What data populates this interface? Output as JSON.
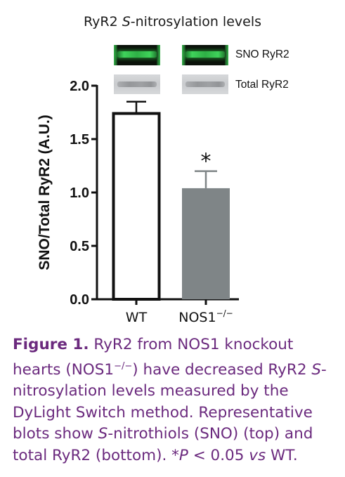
{
  "title": {
    "prefix": "RyR2 ",
    "italic": "S",
    "suffix": "-nitrosylation levels"
  },
  "blots": {
    "sno_label": "SNO RyR2",
    "total_label": "Total  RyR2"
  },
  "chart_data": {
    "type": "bar",
    "categories": [
      "WT",
      "NOS1"
    ],
    "category_superscripts": [
      "",
      "−/−"
    ],
    "values": [
      1.74,
      1.04
    ],
    "errors": [
      0.11,
      0.16
    ],
    "annotations": [
      "",
      "*"
    ],
    "bar_colors": [
      "#ffffff",
      "#7f8587"
    ],
    "ylabel": "SNO/Total RyR2 (A.U.)",
    "ylim": [
      0,
      2.0
    ],
    "yticks": [
      "0.0",
      "0.5",
      "1.0",
      "1.5",
      "2.0"
    ],
    "grid": false
  },
  "caption": {
    "label": "Figure 1.",
    "text_1": " RyR2 from NOS1 knockout hearts (NOS1",
    "sup_1": "−/−",
    "text_2": ") have decreased RyR2 ",
    "italic_1": "S",
    "text_3": "-nitrosylation levels measured by the DyLight Switch method. Representative blots show ",
    "italic_2": "S",
    "text_4": "-nitrothiols (SNO) (top) and total RyR2 (bottom). ",
    "italic_3": "*P",
    "text_5": " < 0.05 ",
    "italic_4": "vs",
    "text_6": " WT."
  }
}
